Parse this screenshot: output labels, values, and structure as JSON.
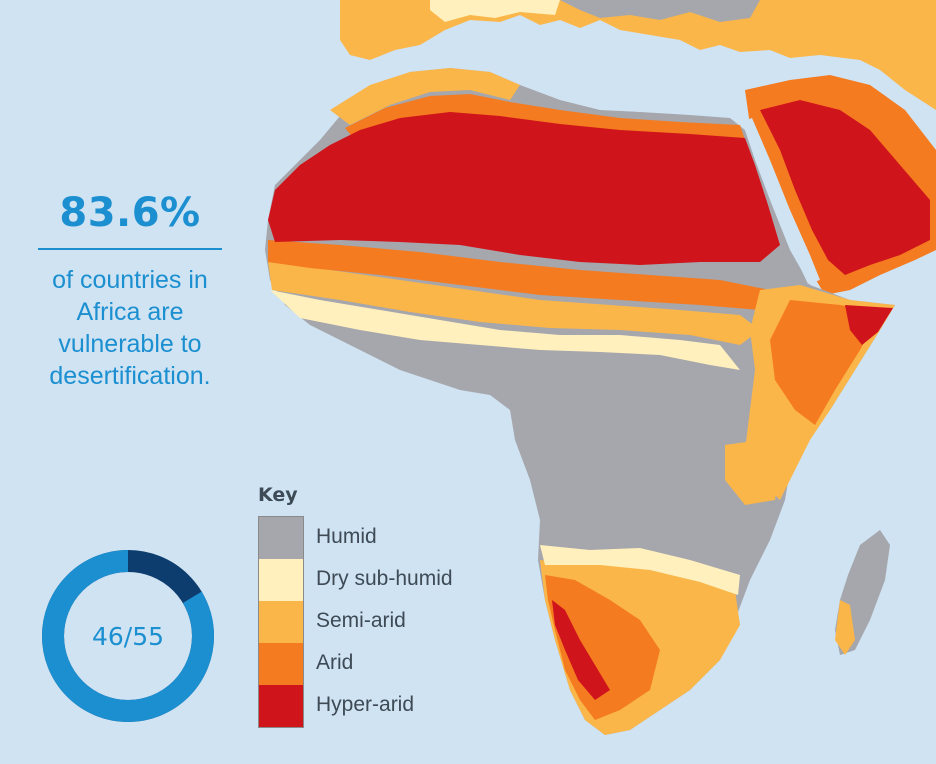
{
  "stat": {
    "percent": "83.6%",
    "line1": "of countries in",
    "line2": "Africa are",
    "line3": "vulnerable to",
    "line4": "desertification."
  },
  "donut": {
    "label": "46/55",
    "value": 46,
    "total": 55,
    "colors": {
      "filled": "#1b8fd0",
      "remaining": "#0d3d6e"
    }
  },
  "legend": {
    "title": "Key",
    "items": [
      {
        "label": "Humid",
        "color": "#a6a6ad"
      },
      {
        "label": "Dry sub-humid",
        "color": "#fff0bd"
      },
      {
        "label": "Semi-arid",
        "color": "#fbb649"
      },
      {
        "label": "Arid",
        "color": "#f47b20"
      },
      {
        "label": "Hyper-arid",
        "color": "#d0141b"
      }
    ]
  },
  "map": {
    "ocean_color": "#cfe3f2",
    "other_land_color": "#e9edf0"
  }
}
